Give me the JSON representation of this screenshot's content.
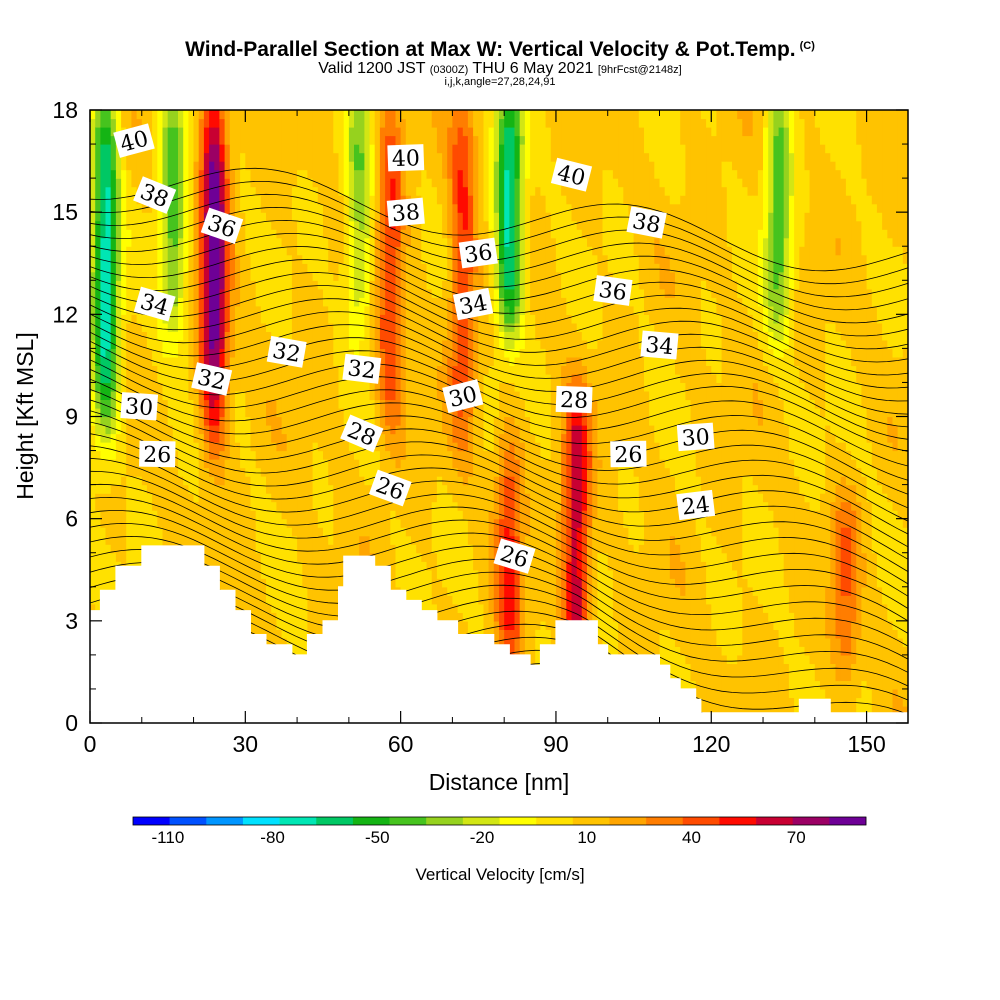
{
  "header": {
    "title": "Wind-Parallel Section at Max W: Vertical Velocity & Pot.Temp.",
    "copyright": "(C)",
    "valid_a": "Valid 1200 JST",
    "valid_utc": "(0300Z)",
    "valid_b": "THU 6 May 2021",
    "forecast": "[9hrFcst@2148z]",
    "indices": "i,j,k,angle=27,28,24,91"
  },
  "chart_data": {
    "type": "heatmap",
    "xlabel": "Distance [nm]",
    "ylabel": "Height [Kft MSL]",
    "xlim": [
      0,
      158
    ],
    "ylim": [
      0,
      18
    ],
    "x_ticks": [
      0,
      30,
      60,
      90,
      120,
      150
    ],
    "y_ticks": [
      0,
      3,
      6,
      9,
      12,
      15,
      18
    ],
    "colorbar": {
      "label": "Vertical Velocity [cm/s]",
      "tick_labels": [
        "-110",
        "-80",
        "-50",
        "-20",
        "10",
        "40",
        "70"
      ],
      "tick_values": [
        -110,
        -80,
        -50,
        -20,
        10,
        40,
        70
      ],
      "range": [
        -120,
        90
      ],
      "colors": [
        "#0000ff",
        "#0050ff",
        "#0095ff",
        "#00e1ff",
        "#00e6b4",
        "#00c864",
        "#14b414",
        "#46c31e",
        "#96d21e",
        "#d2e614",
        "#ffff00",
        "#ffe100",
        "#ffc300",
        "#ffa500",
        "#ff7d00",
        "#ff4b00",
        "#ff0a00",
        "#c80032",
        "#9b0064",
        "#6e0096"
      ]
    },
    "terrain_top_kft": [
      [
        0,
        3.3
      ],
      [
        2,
        3.9
      ],
      [
        5,
        4.6
      ],
      [
        10,
        5.2
      ],
      [
        22,
        4.6
      ],
      [
        25,
        3.9
      ],
      [
        28,
        3.3
      ],
      [
        31,
        2.6
      ],
      [
        34,
        2.3
      ],
      [
        39,
        2.0
      ],
      [
        42,
        2.6
      ],
      [
        45,
        3.0
      ],
      [
        48,
        4.0
      ],
      [
        49,
        4.9
      ],
      [
        55,
        4.6
      ],
      [
        58,
        3.9
      ],
      [
        61,
        3.6
      ],
      [
        64,
        3.3
      ],
      [
        67,
        3.0
      ],
      [
        71,
        2.6
      ],
      [
        78,
        2.3
      ],
      [
        81,
        2.0
      ],
      [
        85,
        1.7
      ],
      [
        87,
        2.3
      ],
      [
        90,
        3.0
      ],
      [
        94,
        3.0
      ],
      [
        98,
        2.3
      ],
      [
        100,
        2.0
      ],
      [
        110,
        1.7
      ],
      [
        112,
        1.3
      ],
      [
        114,
        1.0
      ],
      [
        117,
        0.7
      ],
      [
        118,
        0.3
      ],
      [
        137,
        0.7
      ],
      [
        143,
        0.3
      ],
      [
        158,
        0.3
      ]
    ],
    "w_features": [
      {
        "x": 3,
        "z_range": [
          9,
          18
        ],
        "w": -80
      },
      {
        "x": 16,
        "z_range": [
          12,
          18
        ],
        "w": -50
      },
      {
        "x": 24,
        "z_range": [
          9,
          18
        ],
        "w": 80
      },
      {
        "x": 52,
        "z_range": [
          12,
          18
        ],
        "w": -40
      },
      {
        "x": 58,
        "z_range": [
          9,
          18
        ],
        "w": 40
      },
      {
        "x": 72,
        "z_range": [
          9,
          18
        ],
        "w": 40
      },
      {
        "x": 81,
        "z_range": [
          12,
          18
        ],
        "w": -80
      },
      {
        "x": 81,
        "z_range": [
          2,
          8
        ],
        "w": 40
      },
      {
        "x": 94,
        "z_range": [
          2,
          9
        ],
        "w": 60
      },
      {
        "x": 133,
        "z_range": [
          12,
          18
        ],
        "w": -50
      },
      {
        "x": 146,
        "z_range": [
          2,
          6
        ],
        "w": 30
      }
    ],
    "theta_contour_labels": [
      {
        "value": "40",
        "x": 8.5,
        "z": 17.1
      },
      {
        "value": "38",
        "x": 12.5,
        "z": 15.5
      },
      {
        "value": "36",
        "x": 25.5,
        "z": 14.6
      },
      {
        "value": "34",
        "x": 12.5,
        "z": 12.3
      },
      {
        "value": "32",
        "x": 23.5,
        "z": 10.1
      },
      {
        "value": "32",
        "x": 38,
        "z": 10.9
      },
      {
        "value": "32",
        "x": 52.5,
        "z": 10.4
      },
      {
        "value": "30",
        "x": 9.5,
        "z": 9.3
      },
      {
        "value": "26",
        "x": 13,
        "z": 7.9
      },
      {
        "value": "40",
        "x": 61,
        "z": 16.6
      },
      {
        "value": "38",
        "x": 61,
        "z": 15.0
      },
      {
        "value": "36",
        "x": 75,
        "z": 13.8
      },
      {
        "value": "34",
        "x": 74,
        "z": 12.3
      },
      {
        "value": "30",
        "x": 72,
        "z": 9.6
      },
      {
        "value": "28",
        "x": 52.5,
        "z": 8.5
      },
      {
        "value": "26",
        "x": 58,
        "z": 6.9
      },
      {
        "value": "26",
        "x": 82,
        "z": 4.9
      },
      {
        "value": "40",
        "x": 93,
        "z": 16.1
      },
      {
        "value": "38",
        "x": 107.5,
        "z": 14.7
      },
      {
        "value": "36",
        "x": 101,
        "z": 12.7
      },
      {
        "value": "34",
        "x": 110,
        "z": 11.1
      },
      {
        "value": "28",
        "x": 93.5,
        "z": 9.5
      },
      {
        "value": "26",
        "x": 104,
        "z": 7.9
      },
      {
        "value": "30",
        "x": 117,
        "z": 8.4
      },
      {
        "value": "24",
        "x": 117,
        "z": 6.4
      }
    ]
  }
}
